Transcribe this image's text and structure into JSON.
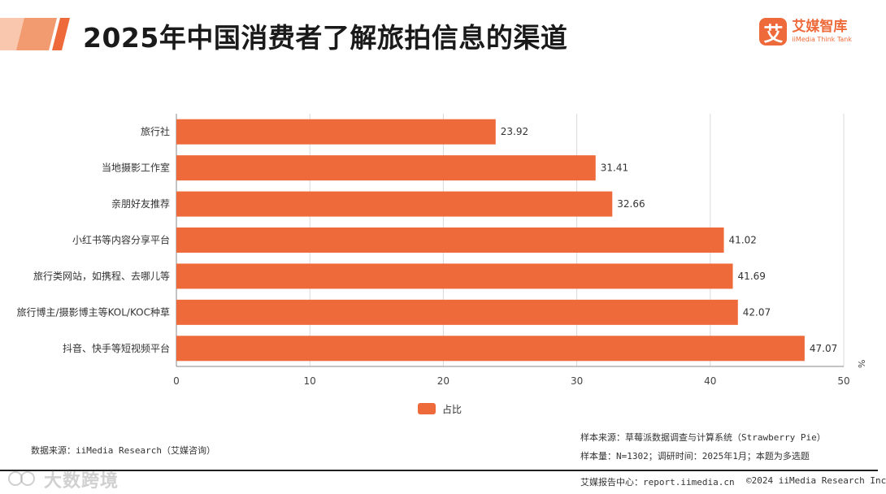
{
  "header": {
    "title": "2025年中国消费者了解旅拍信息的渠道",
    "brand_icon_glyph": "艾",
    "brand_name": "艾媒智库",
    "brand_sub": "iiMedia Think Tank"
  },
  "colors": {
    "bar": "#ee6a3a",
    "accent": "#ee6a3a",
    "grid": "#d9d9d9",
    "axis": "#8a8a8a"
  },
  "chart_data": {
    "type": "bar",
    "orientation": "horizontal",
    "categories": [
      "旅行社",
      "当地摄影工作室",
      "亲朋好友推荐",
      "小红书等内容分享平台",
      "旅行类网站，如携程、去哪儿等",
      "旅行博主/摄影博主等KOL/KOC种草",
      "抖音、快手等短视频平台"
    ],
    "series": [
      {
        "name": "占比",
        "values": [
          23.92,
          31.41,
          32.66,
          41.02,
          41.69,
          42.07,
          47.07
        ]
      }
    ],
    "value_labels": [
      "23.92",
      "31.41",
      "32.66",
      "41.02",
      "41.69",
      "42.07",
      "47.07"
    ],
    "xlim": [
      0,
      50
    ],
    "xticks": [
      "0",
      "10",
      "20",
      "30",
      "40",
      "50"
    ],
    "xunit": "%",
    "legend": "bottom-center",
    "grid": true
  },
  "footer": {
    "source_left": "数据来源：iiMedia Research（艾媒咨询）",
    "source_right_1": "样本来源：草莓派数据调查与计算系统（Strawberry Pie）",
    "source_right_2": "样本量：N=1302；调研时间：2025年1月；本题为多选题",
    "report_center": "艾媒报告中心：report.iimedia.cn",
    "copyright": "©2024 iiMedia Research Inc"
  },
  "watermark": {
    "text": "大数跨境"
  }
}
